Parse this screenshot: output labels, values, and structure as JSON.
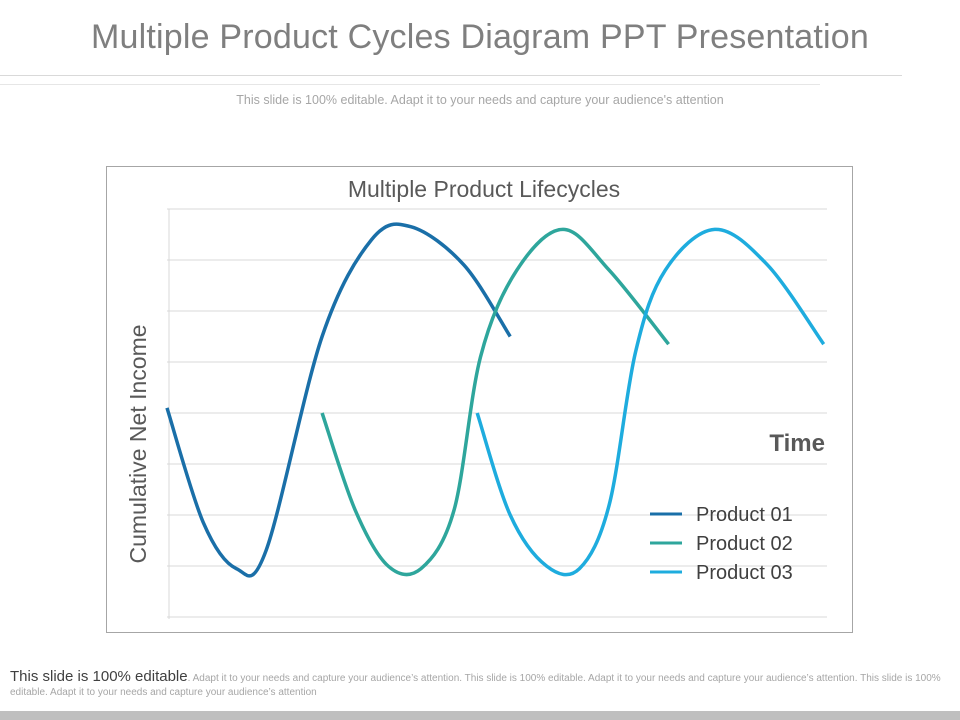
{
  "slide": {
    "title": "Multiple Product Cycles Diagram PPT Presentation",
    "subtitle": "This slide is 100% editable. Adapt it to your needs and capture your audience's attention",
    "footer_lead": "This slide is 100% editable",
    "footer_rest": ". Adapt it to your needs and capture your audience’s attention. This slide is 100% editable. Adapt it to your needs and capture your audience’s attention. This slide is 100% editable. Adapt it to your needs and capture your audience’s attention"
  },
  "chart_data": {
    "type": "line",
    "title": "Multiple Product Lifecycles",
    "xlabel": "Time",
    "ylabel": "Cumulative Net Income",
    "grid": true,
    "legend_position": "bottom-right",
    "xlim": [
      0,
      10
    ],
    "ylim": [
      0,
      8
    ],
    "series": [
      {
        "name": "Product 01",
        "color": "#1a6fa8",
        "points": [
          [
            0,
            4.1
          ],
          [
            0.55,
            1.85
          ],
          [
            1.05,
            0.95
          ],
          [
            1.5,
            1.3
          ],
          [
            2.35,
            5.5
          ],
          [
            3.1,
            7.4
          ],
          [
            3.7,
            7.65
          ],
          [
            4.5,
            6.9
          ],
          [
            5.2,
            5.5
          ]
        ]
      },
      {
        "name": "Product 02",
        "color": "#2ea69c",
        "points": [
          [
            2.35,
            4.0
          ],
          [
            2.85,
            2.1
          ],
          [
            3.35,
            1.0
          ],
          [
            3.85,
            0.95
          ],
          [
            4.35,
            2.1
          ],
          [
            4.75,
            5.1
          ],
          [
            5.3,
            6.8
          ],
          [
            6.0,
            7.6
          ],
          [
            6.7,
            6.8
          ],
          [
            7.6,
            5.35
          ]
        ]
      },
      {
        "name": "Product 03",
        "color": "#1eacde",
        "points": [
          [
            4.7,
            4.0
          ],
          [
            5.2,
            2.0
          ],
          [
            5.75,
            1.0
          ],
          [
            6.25,
            0.95
          ],
          [
            6.7,
            2.2
          ],
          [
            7.1,
            5.2
          ],
          [
            7.55,
            6.8
          ],
          [
            8.3,
            7.6
          ],
          [
            9.1,
            6.9
          ],
          [
            9.95,
            5.35
          ]
        ]
      }
    ]
  }
}
